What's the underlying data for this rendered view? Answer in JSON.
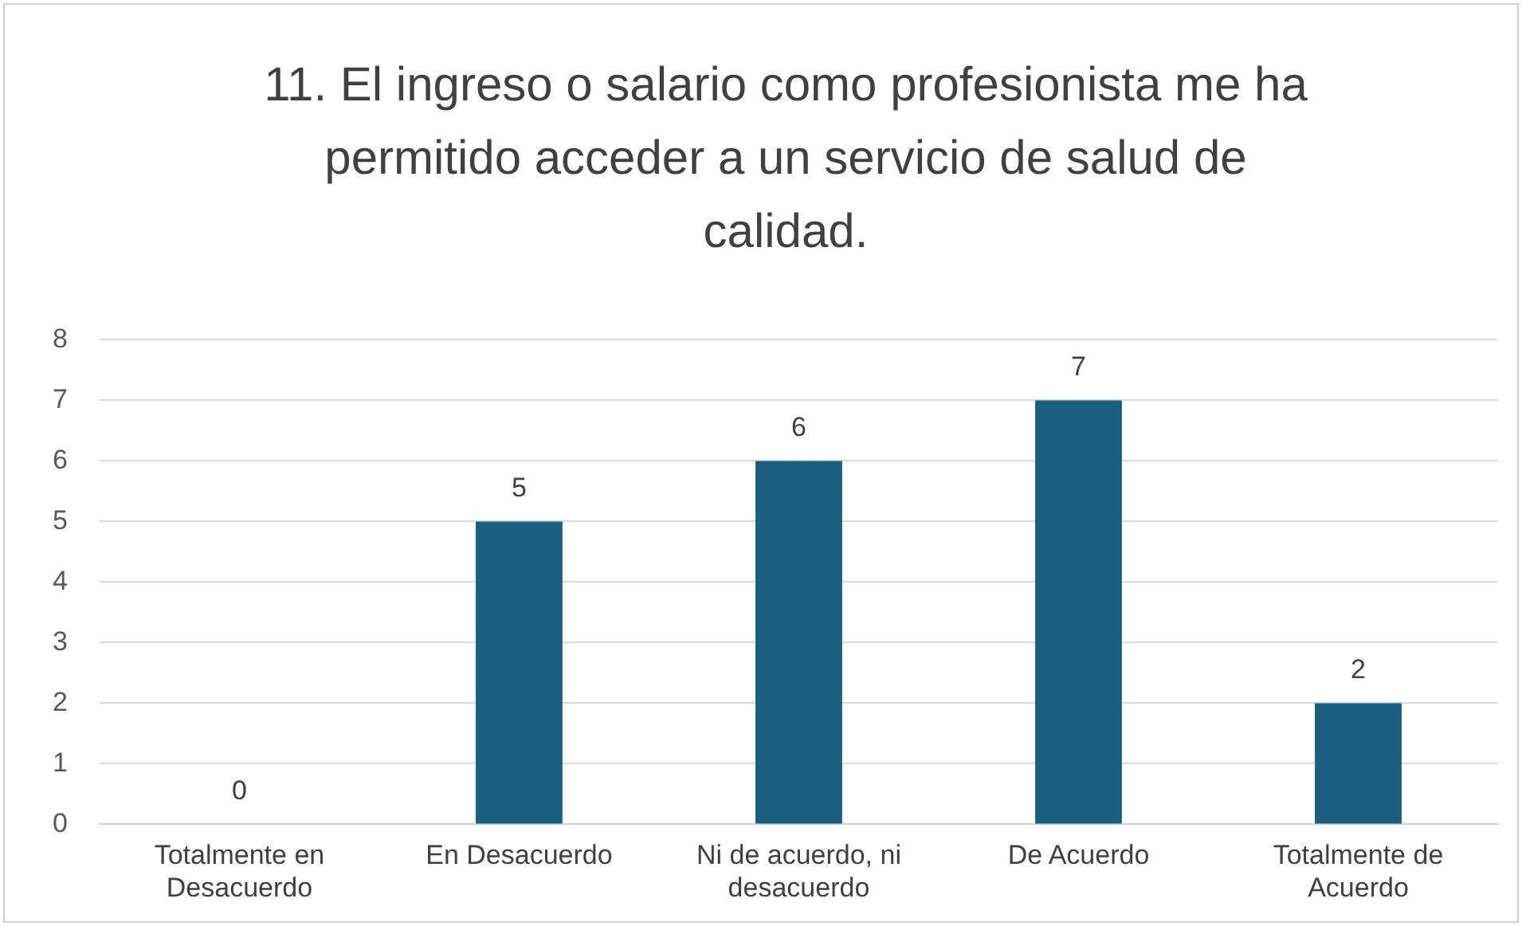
{
  "chart_data": {
    "type": "bar",
    "title": "11. El ingreso o salario como profesionista me ha permitido acceder a un servicio de salud de calidad.",
    "categories": [
      "Totalmente en Desacuerdo",
      "En Desacuerdo",
      "Ni de acuerdo, ni desacuerdo",
      "De Acuerdo",
      "Totalmente de Acuerdo"
    ],
    "values": [
      0,
      5,
      6,
      7,
      2
    ],
    "color": "#1a5e80",
    "ylim": [
      0,
      8
    ],
    "yticks": [
      0,
      1,
      2,
      3,
      4,
      5,
      6,
      7,
      8
    ],
    "grid": "y",
    "legend": false,
    "data_labels": true
  }
}
